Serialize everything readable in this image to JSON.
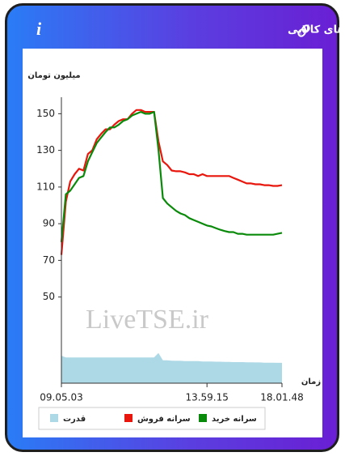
{
  "header": {
    "title": "سرانه ی خرید و فروش حقیقی در صندوق های کالایی",
    "info_label": "i"
  },
  "chart_data": {
    "type": "line",
    "y_axis_label": "میلیون تومان",
    "x_axis_label": "زمان",
    "watermark": "LiveTSE.ir",
    "x": [
      0,
      2,
      4,
      6,
      8,
      10,
      12,
      14,
      16,
      18,
      20,
      22,
      24,
      26,
      28,
      30,
      32,
      34,
      36,
      38,
      40,
      42,
      44,
      46,
      48,
      50,
      52,
      54,
      56,
      58,
      60,
      62,
      64,
      66,
      68,
      70,
      72,
      74,
      76,
      78,
      80,
      82,
      84,
      86,
      88,
      90,
      92,
      94,
      96,
      98,
      100
    ],
    "xlim": [
      0,
      100
    ],
    "xticks": [
      {
        "value": 0,
        "label": "09.05.03"
      },
      {
        "value": 66,
        "label": "13.59.15"
      },
      {
        "value": 100,
        "label": "18.01.48"
      }
    ],
    "ylim": [
      3,
      159
    ],
    "yticks": [
      50,
      70,
      90,
      110,
      130,
      150
    ],
    "series": [
      {
        "name": "سرانه خرید",
        "color": "#0a8a0a",
        "style": "line",
        "values": [
          80,
          106,
          108,
          111.5,
          115,
          116,
          124,
          129,
          134,
          137,
          140,
          142.5,
          142.5,
          144,
          146,
          147,
          149,
          150,
          151,
          150,
          150,
          151,
          130.5,
          104,
          101,
          99,
          97,
          95.6,
          94.7,
          93,
          92,
          91,
          90,
          89,
          88.5,
          87.6,
          86.7,
          86,
          85.4,
          85.4,
          84.5,
          84.5,
          84,
          84,
          84,
          84,
          84,
          84,
          84,
          84.5,
          85
        ]
      },
      {
        "name": "سرانه فروش",
        "color": "#e8160c",
        "style": "line",
        "values": [
          73,
          102,
          113,
          117,
          120,
          119,
          128,
          130,
          136,
          139,
          141.5,
          141.5,
          144,
          146,
          147,
          147,
          150,
          152,
          152,
          151,
          151,
          151,
          135,
          124,
          122,
          119,
          118.6,
          118.6,
          118,
          117,
          117,
          116,
          117,
          116,
          116,
          116,
          116,
          116,
          116,
          115,
          114,
          113,
          112,
          112,
          111.5,
          111.5,
          111,
          111,
          110.6,
          110.6,
          111
        ]
      },
      {
        "name": "قدرت",
        "color": "#add8e6",
        "style": "area",
        "values": [
          18,
          17,
          17,
          17,
          17,
          17,
          17,
          17,
          17,
          17,
          17,
          17,
          17,
          17,
          17,
          17,
          17,
          17,
          17,
          17,
          17,
          17,
          19.5,
          15.5,
          15.5,
          15.3,
          15.2,
          15.2,
          15,
          15,
          15,
          15,
          14.8,
          14.8,
          14.8,
          14.7,
          14.7,
          14.6,
          14.6,
          14.5,
          14.5,
          14.5,
          14.4,
          14.4,
          14.3,
          14.3,
          14.2,
          14.2,
          14.2,
          14.1,
          14.1
        ]
      }
    ]
  }
}
